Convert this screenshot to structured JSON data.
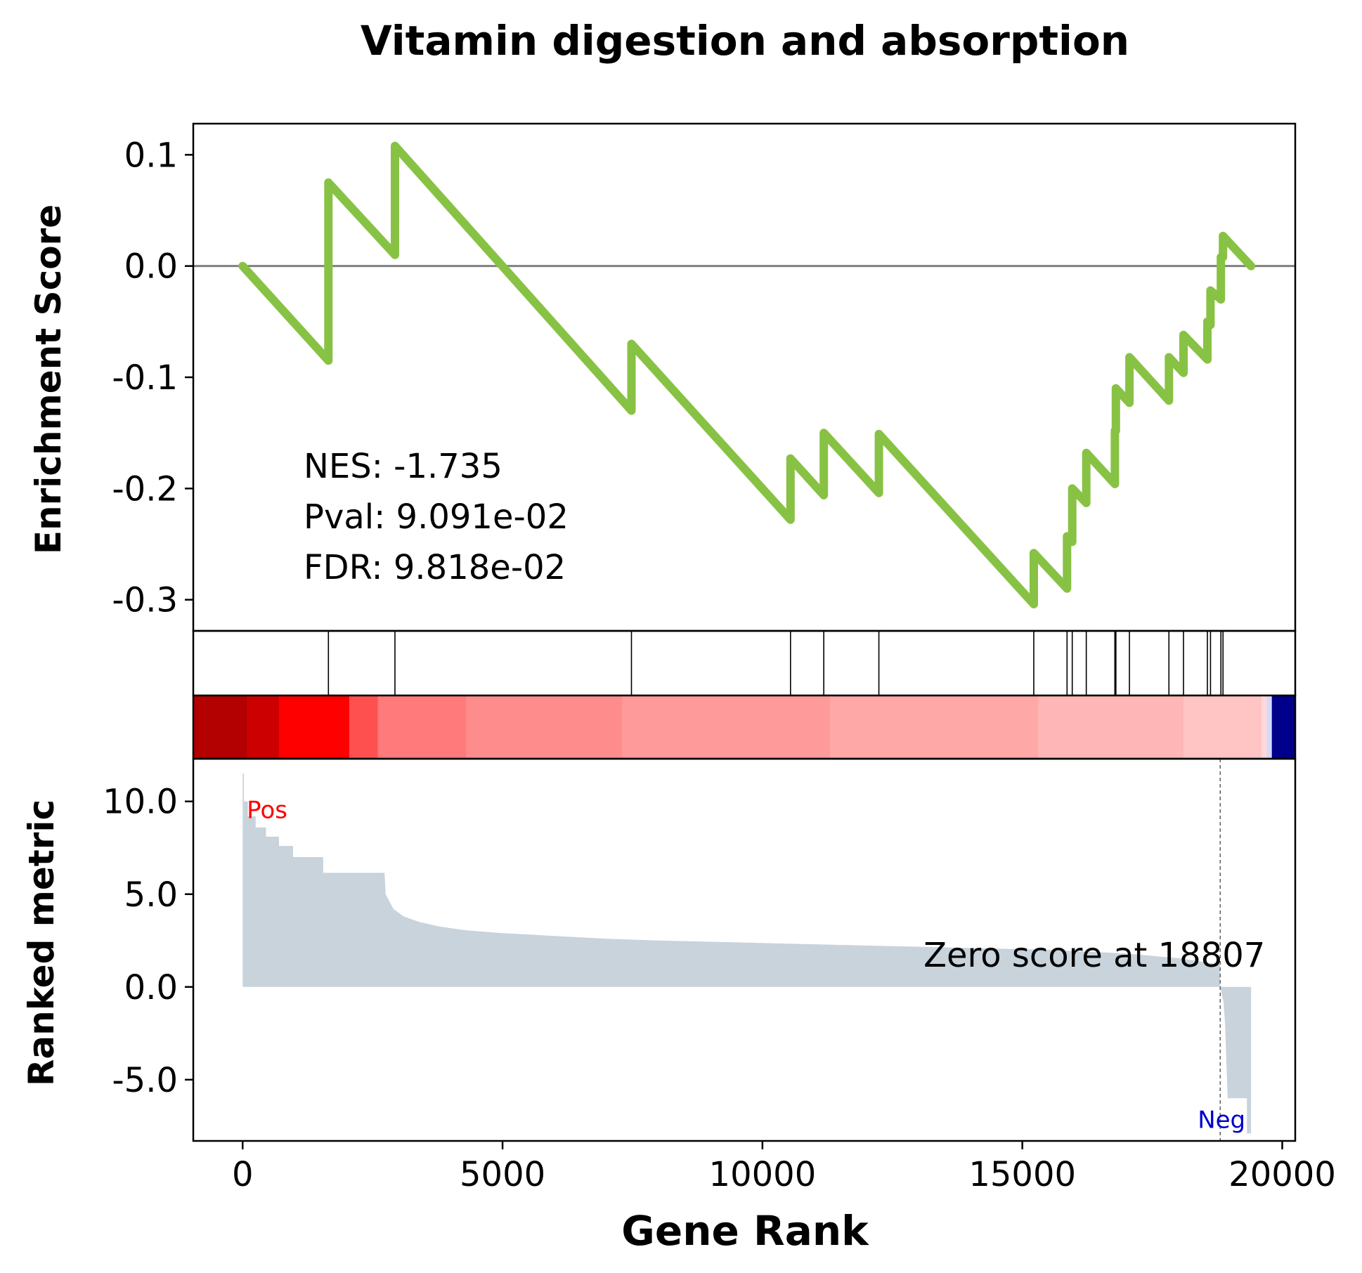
{
  "chart_data": {
    "type": "line",
    "title": "Vitamin digestion and absorption",
    "xlabel": "Gene Rank",
    "x_ticks": [
      0,
      5000,
      10000,
      15000,
      20000
    ],
    "xlim": [
      -950,
      20250
    ],
    "colors": {
      "es_line": "#88c244",
      "zero_line": "#808080",
      "ranked_fill": "#c8d3dc",
      "pos_label": "#ff0000",
      "neg_label": "#0000cc",
      "neg_band": "#00008b"
    },
    "es_panel": {
      "ylabel": "Enrichment Score",
      "ylim": [
        -0.328,
        0.128
      ],
      "y_ticks": [
        -0.3,
        -0.2,
        -0.1,
        0.0,
        0.1
      ],
      "y_tick_labels": [
        "-0.3",
        "-0.2",
        "-0.1",
        "0.0",
        "0.1"
      ],
      "stats": {
        "nes": "NES: -1.735",
        "pval": "Pval: 9.091e-02",
        "fdr": "FDR: 9.818e-02"
      },
      "points": [
        [
          0,
          0.0
        ],
        [
          1650,
          -0.085
        ],
        [
          1650,
          0.075
        ],
        [
          2930,
          0.01
        ],
        [
          2930,
          0.108
        ],
        [
          7480,
          -0.13
        ],
        [
          7480,
          -0.07
        ],
        [
          10540,
          -0.228
        ],
        [
          10540,
          -0.173
        ],
        [
          11180,
          -0.206
        ],
        [
          11180,
          -0.15
        ],
        [
          12240,
          -0.204
        ],
        [
          12240,
          -0.151
        ],
        [
          15220,
          -0.304
        ],
        [
          15220,
          -0.258
        ],
        [
          15860,
          -0.29
        ],
        [
          15860,
          -0.243
        ],
        [
          15960,
          -0.248
        ],
        [
          15960,
          -0.2
        ],
        [
          16230,
          -0.213
        ],
        [
          16230,
          -0.168
        ],
        [
          16780,
          -0.196
        ],
        [
          16780,
          -0.148
        ],
        [
          16800,
          -0.148
        ],
        [
          16800,
          -0.11
        ],
        [
          17060,
          -0.123
        ],
        [
          17060,
          -0.082
        ],
        [
          17820,
          -0.121
        ],
        [
          17820,
          -0.082
        ],
        [
          18100,
          -0.096
        ],
        [
          18100,
          -0.062
        ],
        [
          18560,
          -0.084
        ],
        [
          18560,
          -0.05
        ],
        [
          18620,
          -0.053
        ],
        [
          18620,
          -0.022
        ],
        [
          18820,
          -0.03
        ],
        [
          18820,
          0.008
        ],
        [
          18860,
          0.008
        ],
        [
          18860,
          0.027
        ],
        [
          19400,
          0.0
        ]
      ]
    },
    "hit_positions": [
      1650,
      2930,
      7480,
      10540,
      11180,
      12240,
      15220,
      15860,
      15960,
      16230,
      16780,
      16800,
      17060,
      17820,
      18100,
      18560,
      18620,
      18820,
      18860
    ],
    "heat_strip": [
      [
        -950,
        "#b30000"
      ],
      [
        80,
        "#cc0000"
      ],
      [
        700,
        "#ff0000"
      ],
      [
        2050,
        "#ff5050"
      ],
      [
        2600,
        "#ff7a7a"
      ],
      [
        4300,
        "#ff8c8c"
      ],
      [
        7300,
        "#ff9a9a"
      ],
      [
        11300,
        "#ffa8a8"
      ],
      [
        15300,
        "#ffb6b6"
      ],
      [
        18100,
        "#ffc4c4"
      ],
      [
        19600,
        "#ffd8d8"
      ],
      [
        19700,
        "#d8d8ff"
      ],
      [
        19800,
        "#00008b"
      ],
      [
        20250,
        "#00008b"
      ]
    ],
    "ranked_panel": {
      "ylabel": "Ranked metric",
      "ylim": [
        -8.3,
        12.3
      ],
      "y_ticks": [
        -5.0,
        0.0,
        5.0,
        10.0
      ],
      "y_tick_labels": [
        "-5.0",
        "0.0",
        "5.0",
        "10.0"
      ],
      "zero_score_at": 18807,
      "zero_label": "Zero score at 18807",
      "pos_label": "Pos",
      "neg_label": "Neg",
      "profile": [
        [
          0,
          11.5
        ],
        [
          25,
          11.5
        ],
        [
          25,
          10.0
        ],
        [
          100,
          10.0
        ],
        [
          100,
          9.2
        ],
        [
          250,
          9.2
        ],
        [
          250,
          8.6
        ],
        [
          450,
          8.6
        ],
        [
          450,
          8.1
        ],
        [
          700,
          8.1
        ],
        [
          700,
          7.6
        ],
        [
          970,
          7.6
        ],
        [
          970,
          7.0
        ],
        [
          1550,
          7.0
        ],
        [
          1550,
          6.15
        ],
        [
          2730,
          6.15
        ],
        [
          2750,
          5.0
        ],
        [
          2900,
          4.2
        ],
        [
          3100,
          3.8
        ],
        [
          3400,
          3.5
        ],
        [
          3800,
          3.25
        ],
        [
          4300,
          3.05
        ],
        [
          5000,
          2.9
        ],
        [
          6000,
          2.75
        ],
        [
          7000,
          2.6
        ],
        [
          8000,
          2.5
        ],
        [
          9500,
          2.4
        ],
        [
          11000,
          2.3
        ],
        [
          12500,
          2.2
        ],
        [
          14000,
          2.1
        ],
        [
          15500,
          2.0
        ],
        [
          17000,
          1.8
        ],
        [
          18000,
          1.55
        ],
        [
          18600,
          1.3
        ],
        [
          18800,
          1.2
        ],
        [
          18807,
          0.0
        ],
        [
          18807,
          0.0
        ],
        [
          18870,
          -0.8
        ],
        [
          18900,
          -2.0
        ],
        [
          18950,
          -6.0
        ],
        [
          19320,
          -6.0
        ],
        [
          19320,
          -7.9
        ],
        [
          19400,
          -7.9
        ],
        [
          19400,
          0.0
        ]
      ]
    }
  }
}
